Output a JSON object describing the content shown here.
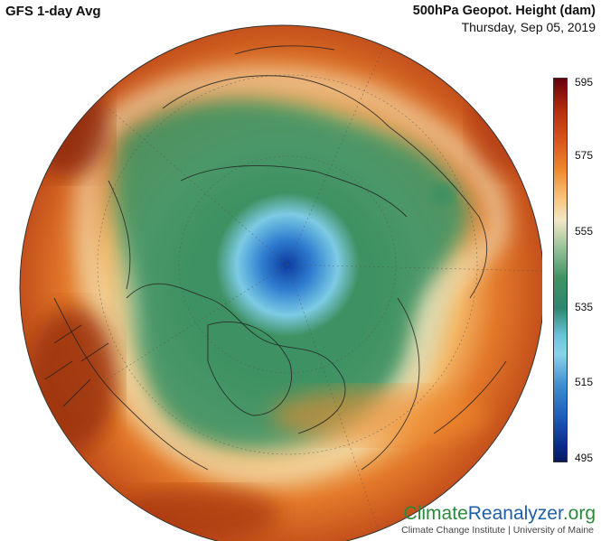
{
  "header": {
    "model_title": "GFS 1-day Avg",
    "variable_title": "500hPa Geopot. Height (dam)",
    "date": "Thursday, Sep 05, 2019"
  },
  "colorbar": {
    "unit": "dam",
    "ticks": [
      "595",
      "575",
      "555",
      "535",
      "515",
      "495"
    ],
    "range": [
      495,
      595
    ],
    "colors": [
      "#67000d",
      "#d9541b",
      "#f8c27a",
      "#3f9463",
      "#67c4d8",
      "#0a2a8a"
    ]
  },
  "brand": {
    "part1": "Climate",
    "part2": "Reanalyzer",
    "part3": ".org",
    "credit": "Climate Change Institute | University of Maine"
  },
  "map": {
    "projection": "orthographic-polar",
    "center": "North Pole"
  }
}
